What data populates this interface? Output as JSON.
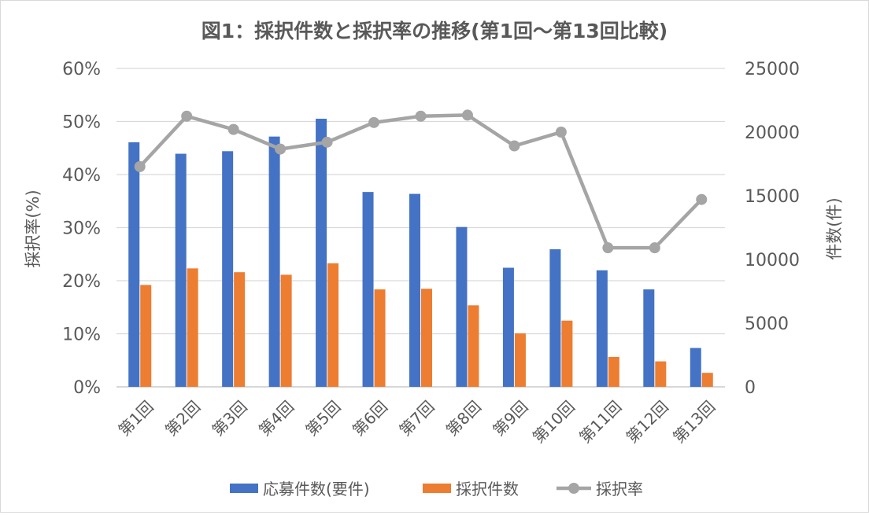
{
  "chart_data": {
    "type": "bar",
    "title": "図1：採択件数と採択率の推移(第1回～第13回比較)",
    "categories": [
      "第1回",
      "第2回",
      "第3回",
      "第4回",
      "第5回",
      "第6回",
      "第7回",
      "第8回",
      "第9回",
      "第10回",
      "第11回",
      "第12回",
      "第13回"
    ],
    "series": [
      {
        "name": "応募件数(要件)",
        "type": "bar",
        "axis": "right",
        "color": "#4472C4",
        "values": [
          19200,
          18300,
          18500,
          19650,
          21050,
          15300,
          15150,
          12550,
          9350,
          10800,
          9150,
          7650,
          3050
        ]
      },
      {
        "name": "採択件数",
        "type": "bar",
        "axis": "right",
        "color": "#ED7D31",
        "values": [
          8000,
          9300,
          9000,
          8800,
          9700,
          7650,
          7700,
          6400,
          4200,
          5200,
          2350,
          2000,
          1100
        ]
      },
      {
        "name": "採択率",
        "type": "line",
        "axis": "left",
        "color": "#A5A5A5",
        "values": [
          41.5,
          51.0,
          48.5,
          44.8,
          46.1,
          49.8,
          51.0,
          51.2,
          45.4,
          48.0,
          26.2,
          26.2,
          35.3
        ]
      }
    ],
    "ylabel_left": "採択率(%)",
    "ylabel_right": "件数(件)",
    "ylim_left": [
      0,
      60
    ],
    "ylim_right": [
      0,
      25000
    ],
    "yticks_left": [
      "0%",
      "10%",
      "20%",
      "30%",
      "40%",
      "50%",
      "60%"
    ],
    "yticks_right": [
      "0",
      "5000",
      "10000",
      "15000",
      "20000",
      "25000"
    ],
    "grid": true,
    "legend": "bottom"
  }
}
